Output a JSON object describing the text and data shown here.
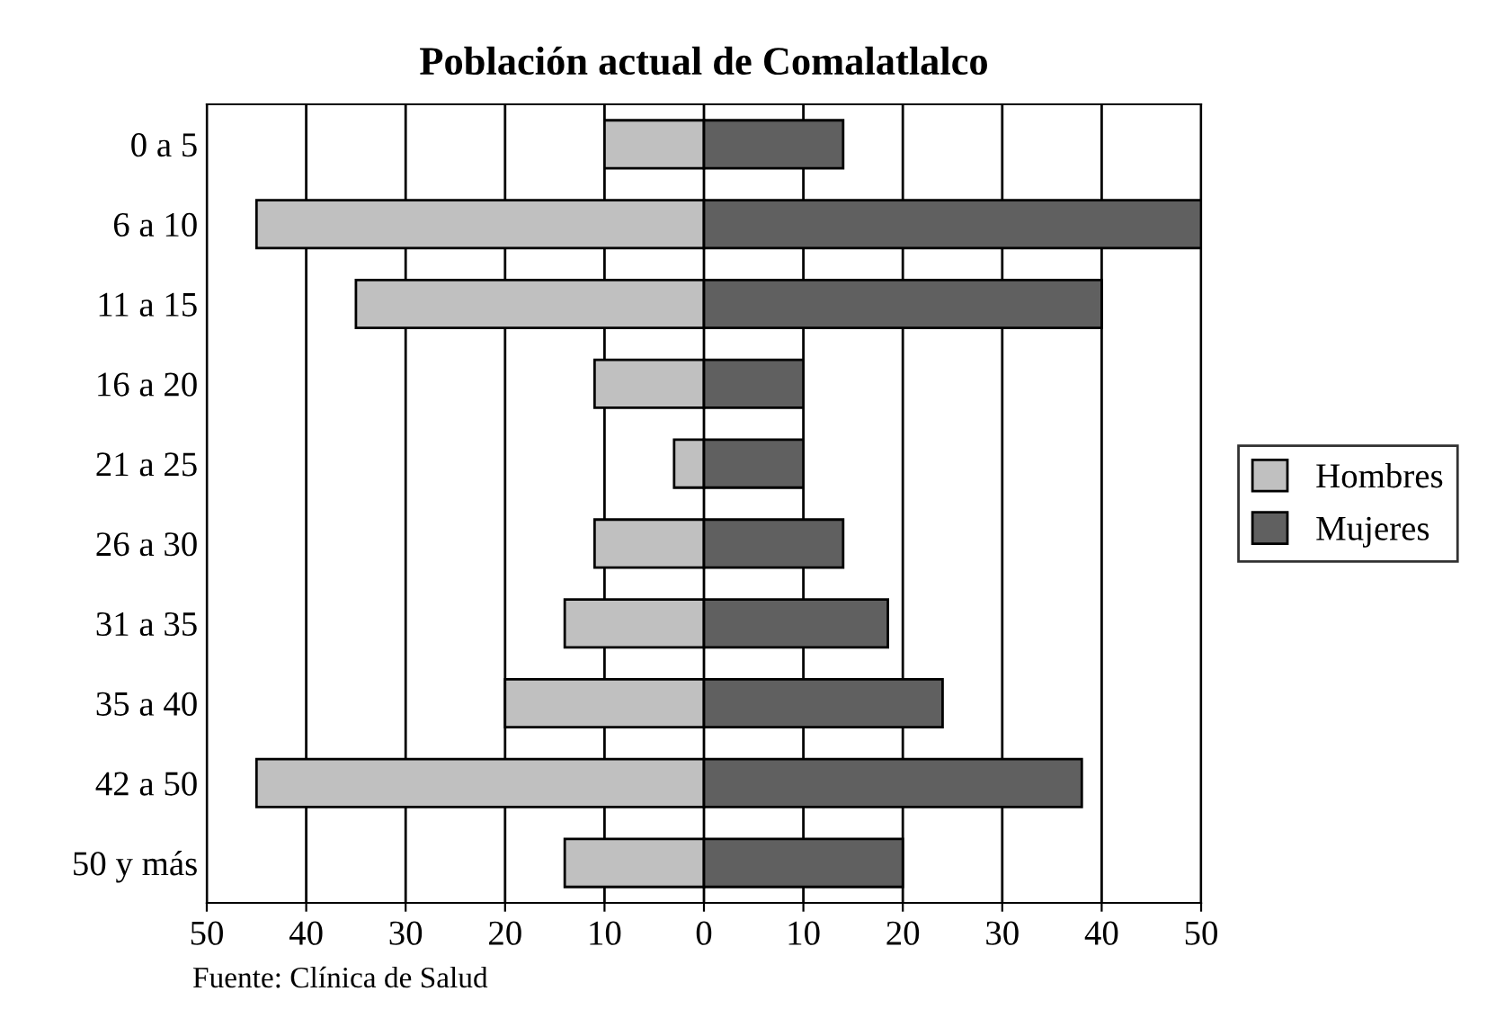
{
  "chart_data": {
    "type": "bar",
    "orientation": "horizontal",
    "stacked": true,
    "title": "Población actual de Comalatlalco",
    "categories": [
      "0 a 5",
      "6 a 10",
      "11 a 15",
      "16 a 20",
      "21 a 25",
      "26 a 30",
      "31 a 35",
      "35 a 40",
      "42 a 50",
      "50 y más"
    ],
    "series": [
      {
        "name": "Hombres",
        "color": "#c0c0c0",
        "values": [
          -10,
          -45,
          -35,
          -11,
          -3,
          -11,
          -14,
          -20,
          -45,
          -14
        ]
      },
      {
        "name": "Mujeres",
        "color": "#606060",
        "values": [
          14,
          50,
          40,
          10,
          10,
          14,
          18.5,
          24,
          38,
          20
        ]
      }
    ],
    "xlim": [
      -50,
      50
    ],
    "xticks": [
      {
        "value": -50,
        "label": "50"
      },
      {
        "value": -40,
        "label": "40"
      },
      {
        "value": -30,
        "label": "30"
      },
      {
        "value": -20,
        "label": "20"
      },
      {
        "value": -10,
        "label": "10"
      },
      0,
      10,
      20,
      30,
      40,
      50
    ],
    "grid": "x",
    "legend": "right",
    "annotations": [
      "Fuente: Clínica de Salud"
    ]
  }
}
